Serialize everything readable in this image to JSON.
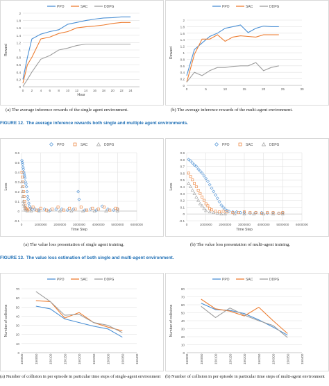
{
  "colors": {
    "ppo": "#4a8fd4",
    "sac": "#ed7d31",
    "ddpg": "#9e9e9e",
    "fig_label": "#1f6fb5"
  },
  "legend": {
    "ppo": "PPO",
    "sac": "SAC",
    "ddpg": "DDPG"
  },
  "captions": {
    "fig12a": "(a) The average inference rewards of the single agent environment.",
    "fig12b": "(b) The average inference rewards of the multi-agent environment.",
    "fig12_label": "FIGURE 12.",
    "fig12_text": "The average inference rewards both single and multiple agent environments.",
    "fig13a": "(a) The value loss presentation of single agent training.",
    "fig13b": "(b) The value loss presentation of multi-agent training.",
    "fig13_label": "FIGURE 13.",
    "fig13_text": "The value loss estimation of both single and multi-agent environment.",
    "fig14a": "(a) Number of collision in per episode in particular time steps of single-agent environment",
    "fig14b": "(b) Number of collision in per episode in particular time steps of multi-agent environment"
  },
  "chart_data": [
    {
      "id": "reward-single",
      "type": "line",
      "xlabel": "Hour",
      "ylabel": "Reward",
      "xlim": [
        0,
        26
      ],
      "ylim": [
        0,
        2
      ],
      "xticks": [
        0,
        2,
        4,
        6,
        8,
        10,
        12,
        14,
        16,
        18,
        20,
        22,
        24
      ],
      "yticks": [
        0,
        0.2,
        0.4,
        0.6,
        0.8,
        1,
        1.2,
        1.4,
        1.6,
        1.8,
        2
      ],
      "ytick_labels": [
        "0",
        "0.2",
        "0.4",
        "0.6",
        "0.8",
        "1",
        "1.2",
        "1.4",
        "1.6",
        "1.8",
        "2"
      ],
      "grid": "horizontal",
      "legend": "top-center",
      "series": [
        {
          "name": "PPO",
          "x": [
            0,
            1,
            2,
            4,
            6,
            8,
            10,
            12,
            14,
            16,
            18,
            20,
            22,
            24
          ],
          "y": [
            0.2,
            0.8,
            1.3,
            1.43,
            1.5,
            1.55,
            1.7,
            1.75,
            1.8,
            1.84,
            1.87,
            1.88,
            1.9,
            1.9
          ]
        },
        {
          "name": "SAC",
          "x": [
            0,
            1,
            2,
            4,
            6,
            8,
            10,
            12,
            14,
            16,
            18,
            20,
            22,
            24
          ],
          "y": [
            0.1,
            0.6,
            0.8,
            1.3,
            1.35,
            1.45,
            1.5,
            1.6,
            1.63,
            1.65,
            1.68,
            1.72,
            1.75,
            1.75
          ]
        },
        {
          "name": "DDPG",
          "x": [
            0,
            1,
            2,
            4,
            6,
            8,
            10,
            12,
            14,
            16,
            18,
            20,
            22,
            24
          ],
          "y": [
            0.01,
            0.2,
            0.4,
            0.75,
            0.85,
            1.0,
            1.05,
            1.12,
            1.16,
            1.16,
            1.16,
            1.16,
            1.16,
            1.16
          ]
        }
      ]
    },
    {
      "id": "reward-multi",
      "type": "line",
      "xlabel": "",
      "ylabel": "Reward",
      "xlim": [
        0,
        30
      ],
      "ylim": [
        0,
        2
      ],
      "xticks": [
        0,
        5,
        10,
        15,
        20,
        25,
        30
      ],
      "yticks": [
        0,
        0.2,
        0.4,
        0.6,
        0.8,
        1,
        1.2,
        1.4,
        1.6,
        1.8,
        2
      ],
      "ytick_labels": [
        "0",
        "0.2",
        "0.4",
        "0.6",
        "0.8",
        "1",
        "1.2",
        "1.4",
        "1.6",
        "1.8",
        "2"
      ],
      "grid": "horizontal",
      "legend": "top-center",
      "series": [
        {
          "name": "PPO",
          "x": [
            0,
            2,
            4,
            6,
            8,
            10,
            12,
            14,
            16,
            18,
            20,
            22,
            24
          ],
          "y": [
            0.3,
            1.1,
            1.3,
            1.5,
            1.6,
            1.75,
            1.8,
            1.85,
            1.62,
            1.75,
            1.82,
            1.8,
            1.8
          ]
        },
        {
          "name": "SAC",
          "x": [
            0,
            2,
            4,
            6,
            8,
            10,
            12,
            14,
            16,
            18,
            20,
            22,
            24
          ],
          "y": [
            0.1,
            0.95,
            1.42,
            1.42,
            1.55,
            1.35,
            1.48,
            1.52,
            1.5,
            1.48,
            1.55,
            1.55,
            1.55
          ]
        },
        {
          "name": "DDPG",
          "x": [
            0,
            2,
            4,
            6,
            8,
            10,
            12,
            14,
            16,
            18,
            20,
            22,
            24
          ],
          "y": [
            0.1,
            0.4,
            0.3,
            0.45,
            0.55,
            0.55,
            0.58,
            0.6,
            0.6,
            0.7,
            0.45,
            0.55,
            0.6
          ]
        }
      ]
    },
    {
      "id": "loss-single",
      "type": "scatter",
      "xlabel": "Time Step",
      "ylabel": "Loss",
      "xlim": [
        0,
        6000000
      ],
      "ylim": [
        -0.1,
        0.6
      ],
      "xticks": [
        0,
        1000000,
        2000000,
        3000000,
        4000000,
        5000000,
        6000000
      ],
      "yticks": [
        -0.1,
        0,
        0.1,
        0.2,
        0.3,
        0.4,
        0.5,
        0.6
      ],
      "ytick_labels": [
        "-0.1",
        "0",
        "0.1",
        "0.2",
        "0.3",
        "0.4",
        "0.5",
        "0.6"
      ],
      "grid": "both",
      "legend": "top-center",
      "series": [
        {
          "name": "PPO",
          "x": [
            20000,
            40000,
            60000,
            80000,
            100000,
            120000,
            140000,
            160000,
            180000,
            200000,
            230000,
            260000,
            290000,
            320000,
            350000,
            380000,
            420000,
            480000,
            550000,
            700000,
            900000,
            1200000,
            1500000,
            1800000,
            2100000,
            2400000,
            2700000,
            2950000,
            3000000,
            3300000,
            3600000,
            3900000,
            4200000,
            4500000,
            4800000,
            5000000
          ],
          "y": [
            0.52,
            0.5,
            0.48,
            0.45,
            0.43,
            0.4,
            0.38,
            0.36,
            0.34,
            0.3,
            0.28,
            0.25,
            0.2,
            0.15,
            0.12,
            0.08,
            0.05,
            0.03,
            0.02,
            0.02,
            0.01,
            0.02,
            0.01,
            0.02,
            0.02,
            0.01,
            0.02,
            0.2,
            0.12,
            0.01,
            0.02,
            0.01,
            0.05,
            0.02,
            0.01,
            0.02
          ]
        },
        {
          "name": "SAC",
          "x": [
            20000,
            40000,
            60000,
            80000,
            100000,
            130000,
            160000,
            190000,
            220000,
            260000,
            300000,
            400000,
            600000,
            800000,
            1000000,
            1300000,
            1600000,
            1900000,
            2200000,
            2500000,
            2800000,
            3100000,
            3400000,
            3700000,
            4000000,
            4300000,
            4600000,
            4900000,
            5000000
          ],
          "y": [
            0.4,
            0.35,
            0.3,
            0.25,
            0.2,
            0.15,
            0.1,
            0.06,
            0.03,
            0.02,
            0.01,
            0.02,
            0.04,
            0.01,
            0.03,
            0.01,
            0.02,
            0.04,
            0.01,
            0.03,
            0.02,
            0.04,
            0.01,
            0.03,
            0.02,
            0.04,
            0.01,
            0.03,
            0.02
          ]
        },
        {
          "name": "DDPG",
          "x": [
            10000,
            30000,
            50000,
            70000,
            90000,
            110000,
            140000,
            170000,
            200000,
            300000,
            500000,
            900000,
            1400000,
            2000000,
            2600000,
            3200000,
            3800000,
            4400000,
            5000000
          ],
          "y": [
            0.3,
            0.25,
            0.2,
            0.15,
            0.1,
            0.07,
            0.05,
            0.03,
            0.01,
            0.0,
            0.0,
            0.0,
            0.0,
            0.0,
            0.0,
            0.0,
            0.0,
            0.0,
            0.0
          ]
        }
      ]
    },
    {
      "id": "loss-multi",
      "type": "scatter",
      "xlabel": "Time Step",
      "ylabel": "Loss",
      "xlim": [
        0,
        6000000
      ],
      "ylim": [
        -0.1,
        0.9
      ],
      "xticks": [
        0,
        1000000,
        2000000,
        3000000,
        4000000,
        5000000,
        6000000
      ],
      "yticks": [
        -0.1,
        0,
        0.1,
        0.2,
        0.3,
        0.4,
        0.5,
        0.6,
        0.7,
        0.8,
        0.9
      ],
      "ytick_labels": [
        "-0.1",
        "0",
        "0.1",
        "0.2",
        "0.3",
        "0.4",
        "0.5",
        "0.6",
        "0.7",
        "0.8",
        "0.9"
      ],
      "grid": "both",
      "legend": "top-center",
      "series": [
        {
          "name": "PPO",
          "x": [
            100000,
            200000,
            300000,
            400000,
            500000,
            600000,
            700000,
            800000,
            900000,
            1000000,
            1100000,
            1200000,
            1300000,
            1400000,
            1500000,
            1600000,
            1700000,
            1800000,
            1900000,
            2000000,
            2100000,
            2200000,
            2400000,
            2600000,
            2800000,
            3000000,
            3300000,
            3600000,
            3900000,
            4200000,
            4500000,
            4800000,
            5000000
          ],
          "y": [
            0.8,
            0.78,
            0.75,
            0.72,
            0.7,
            0.66,
            0.63,
            0.6,
            0.56,
            0.52,
            0.48,
            0.43,
            0.38,
            0.33,
            0.28,
            0.23,
            0.18,
            0.13,
            0.1,
            0.07,
            0.05,
            0.04,
            0.03,
            0.03,
            0.02,
            0.02,
            0.01,
            0.02,
            0.02,
            0.01,
            0.02,
            0.01,
            0.02
          ]
        },
        {
          "name": "SAC",
          "x": [
            100000,
            200000,
            300000,
            400000,
            500000,
            600000,
            700000,
            800000,
            900000,
            1000000,
            1100000,
            1200000,
            1300000,
            1500000,
            1700000,
            1900000,
            2100000,
            2400000,
            2700000,
            3000000,
            3300000,
            3600000,
            3900000,
            4200000,
            4500000,
            4800000,
            5000000
          ],
          "y": [
            0.6,
            0.55,
            0.5,
            0.45,
            0.4,
            0.35,
            0.3,
            0.25,
            0.2,
            0.15,
            0.12,
            0.08,
            0.06,
            0.04,
            0.03,
            0.04,
            0.03,
            0.02,
            0.02,
            0.03,
            0.02,
            0.02,
            0.01,
            0.02,
            0.02,
            0.01,
            0.02
          ]
        },
        {
          "name": "DDPG",
          "x": [
            100000,
            200000,
            300000,
            400000,
            500000,
            600000,
            700000,
            800000,
            900000,
            1000000,
            1200000,
            1400000,
            1600000,
            1800000,
            2000000,
            2500000,
            3000000,
            3500000,
            4000000,
            4500000,
            5000000
          ],
          "y": [
            0.45,
            0.4,
            0.35,
            0.3,
            0.25,
            0.2,
            0.15,
            0.12,
            0.08,
            0.05,
            0.03,
            0.02,
            0.01,
            0.0,
            0.0,
            0.0,
            0.0,
            0.0,
            0.0,
            0.0,
            0.0
          ]
        }
      ]
    },
    {
      "id": "collision-single",
      "type": "line",
      "xlabel": "Episode",
      "ylabel": "Number of collisions",
      "xlim": [
        150000,
        150400
      ],
      "ylim": [
        0,
        70
      ],
      "xticks": [
        150000,
        150050,
        150100,
        150150,
        150200,
        150250,
        150300,
        150350,
        150400
      ],
      "yticks": [
        0,
        10,
        20,
        30,
        40,
        50,
        60,
        70
      ],
      "ytick_labels": [
        "0",
        "10",
        "20",
        "30",
        "40",
        "50",
        "60",
        "70"
      ],
      "grid": "horizontal",
      "legend": "top-center",
      "series": [
        {
          "name": "PPO",
          "x": [
            150050,
            150100,
            150150,
            150200,
            150250,
            150300,
            150350
          ],
          "y": [
            51,
            48,
            37,
            33,
            29,
            26,
            17
          ]
        },
        {
          "name": "SAC",
          "x": [
            150050,
            150100,
            150150,
            150200,
            150250,
            150300,
            150350
          ],
          "y": [
            57,
            56,
            38,
            44,
            33,
            28,
            24
          ]
        },
        {
          "name": "DDPG",
          "x": [
            150050,
            150100,
            150150,
            150200,
            150250,
            150300,
            150350
          ],
          "y": [
            67,
            56,
            41,
            42,
            33,
            30,
            22
          ]
        }
      ]
    },
    {
      "id": "collision-multi",
      "type": "line",
      "xlabel": "Episode",
      "ylabel": "Number of collisions",
      "xlim": [
        150000,
        150400
      ],
      "ylim": [
        0,
        80
      ],
      "xticks": [
        150000,
        150050,
        150100,
        150150,
        150200,
        150250,
        150300,
        150350,
        150400
      ],
      "yticks": [
        0,
        10,
        20,
        30,
        40,
        50,
        60,
        70,
        80
      ],
      "ytick_labels": [
        "0",
        "10",
        "20",
        "30",
        "40",
        "50",
        "60",
        "70",
        "80"
      ],
      "grid": "horizontal",
      "legend": "top-center",
      "series": [
        {
          "name": "PPO",
          "x": [
            150050,
            150100,
            150150,
            150200,
            150250,
            150300,
            150350
          ],
          "y": [
            62,
            54,
            53,
            49,
            41,
            32,
            22
          ]
        },
        {
          "name": "SAC",
          "x": [
            150050,
            150100,
            150150,
            150200,
            150250,
            150300,
            150350
          ],
          "y": [
            67,
            55,
            52,
            46,
            57,
            40,
            24
          ]
        },
        {
          "name": "DDPG",
          "x": [
            150050,
            150100,
            150150,
            150200,
            150250,
            150300,
            150350
          ],
          "y": [
            58,
            44,
            56,
            47,
            40,
            34,
            19
          ]
        }
      ]
    }
  ]
}
